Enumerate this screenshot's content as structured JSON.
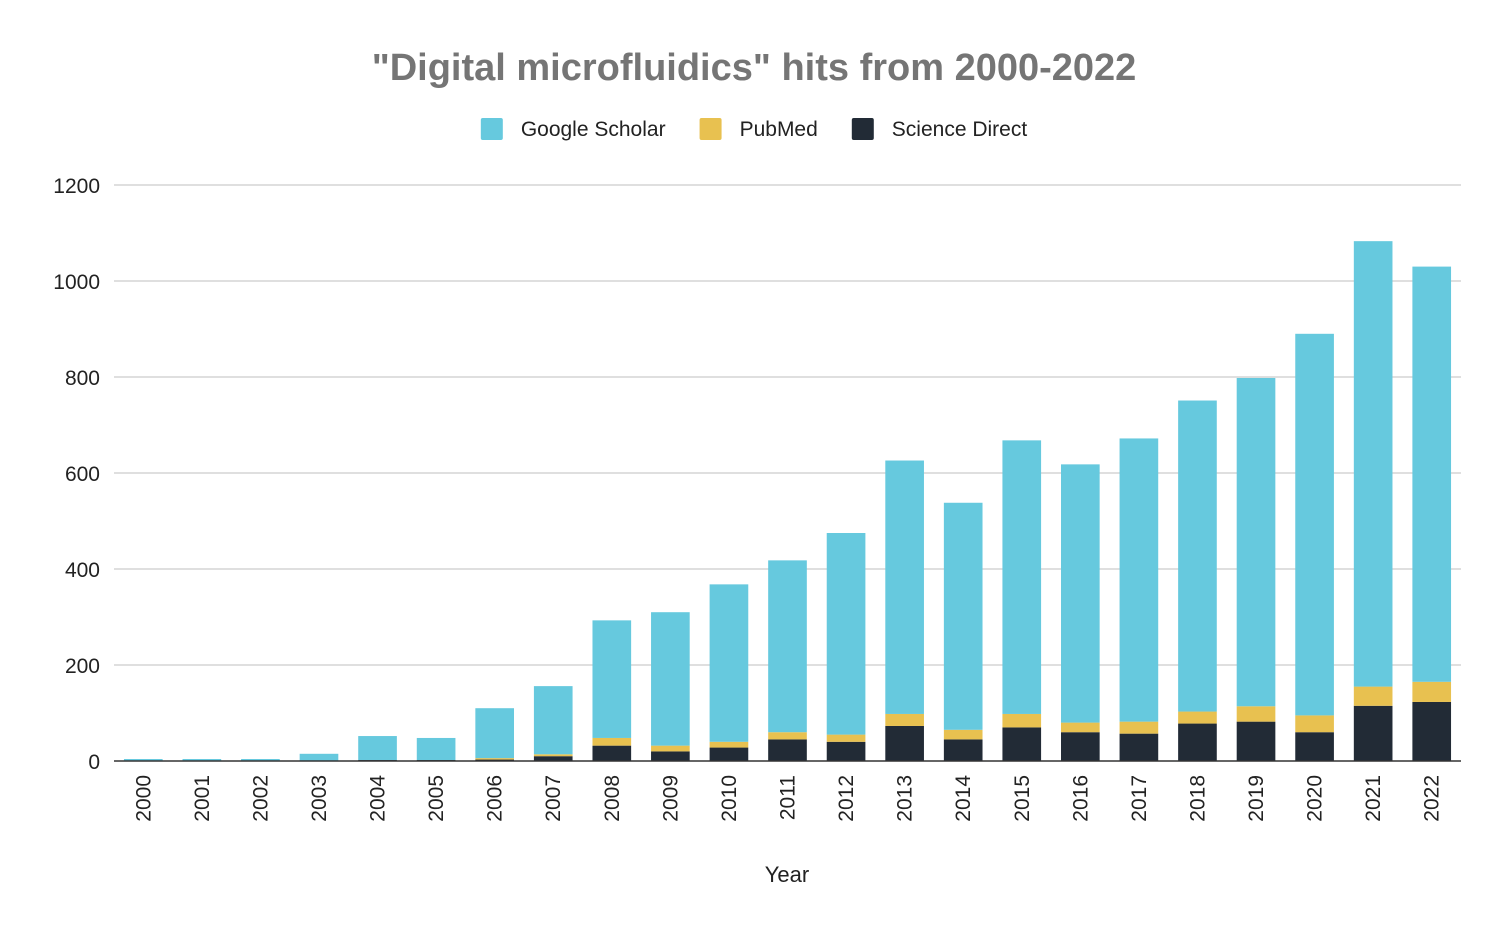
{
  "chart_data": {
    "type": "bar",
    "stacked": true,
    "title": "\"Digital microfluidics\" hits from 2000-2022",
    "xlabel": "Year",
    "ylabel": "",
    "ylim": [
      0,
      1200
    ],
    "yticks": [
      0,
      200,
      400,
      600,
      800,
      1000,
      1200
    ],
    "grid": true,
    "legend_position": "top",
    "categories": [
      "2000",
      "2001",
      "2002",
      "2003",
      "2004",
      "2005",
      "2006",
      "2007",
      "2008",
      "2009",
      "2010",
      "2011",
      "2012",
      "2013",
      "2014",
      "2015",
      "2016",
      "2017",
      "2018",
      "2019",
      "2020",
      "2021",
      "2022"
    ],
    "series": [
      {
        "name": "Science Direct",
        "color": "#222b36",
        "values": [
          0,
          0,
          0,
          0,
          2,
          2,
          3,
          10,
          32,
          20,
          28,
          45,
          40,
          73,
          45,
          70,
          60,
          57,
          78,
          82,
          60,
          115,
          123
        ]
      },
      {
        "name": "PubMed",
        "color": "#e8c150",
        "values": [
          0,
          0,
          0,
          0,
          0,
          0,
          3,
          4,
          16,
          12,
          12,
          15,
          15,
          25,
          20,
          28,
          20,
          25,
          25,
          32,
          35,
          40,
          42
        ]
      },
      {
        "name": "Google Scholar",
        "color": "#66c9de",
        "values": [
          2,
          2,
          2,
          15,
          50,
          46,
          104,
          142,
          245,
          278,
          328,
          358,
          420,
          528,
          473,
          570,
          538,
          590,
          648,
          684,
          795,
          928,
          865
        ]
      }
    ],
    "legend_order": [
      "Google Scholar",
      "PubMed",
      "Science Direct"
    ]
  },
  "colors": {
    "title": "#757575",
    "text": "#222222",
    "grid": "#cccccc",
    "axis": "#333333",
    "background": "#ffffff"
  }
}
